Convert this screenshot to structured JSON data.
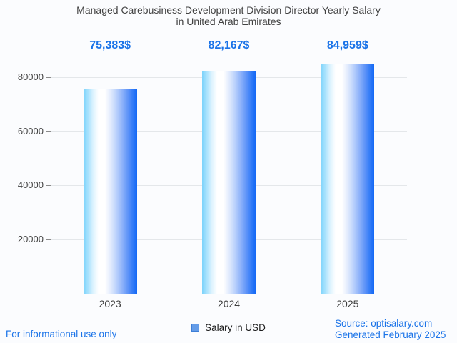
{
  "title": {
    "line1": "Managed Carebusiness Development Division Director Yearly Salary",
    "line2": "in United Arab Emirates"
  },
  "chart_data": {
    "type": "bar",
    "title": "Managed Carebusiness Development Division Director Yearly Salary in United Arab Emirates",
    "categories": [
      "2023",
      "2024",
      "2025"
    ],
    "values": [
      75383,
      82167,
      84959
    ],
    "value_labels": [
      "75,383$",
      "82,167$",
      "84,959$"
    ],
    "series_name": "Salary in USD",
    "xlabel": "",
    "ylabel": "",
    "y_ticks": [
      20000,
      40000,
      60000,
      80000
    ],
    "ylim": [
      0,
      89700
    ],
    "grid": true,
    "legend_position": "bottom",
    "bar_gradient": [
      "#7cd3fb",
      "#ffffff",
      "#1468f5"
    ]
  },
  "legend": {
    "label": "Salary in USD",
    "swatch_fill": "#649ce8",
    "swatch_border": "#3d7ed6"
  },
  "footer": {
    "disclaimer": "For informational use only",
    "source": "Source: optisalary.com",
    "generated": "Generated February 2025"
  },
  "colors": {
    "accent_blue": "#1a73e8",
    "title_text": "#424242",
    "axis_text": "#444444",
    "grid_line": "#e4e7ea",
    "axis_line": "#6f6f6f",
    "background": "#fbfcfe"
  }
}
